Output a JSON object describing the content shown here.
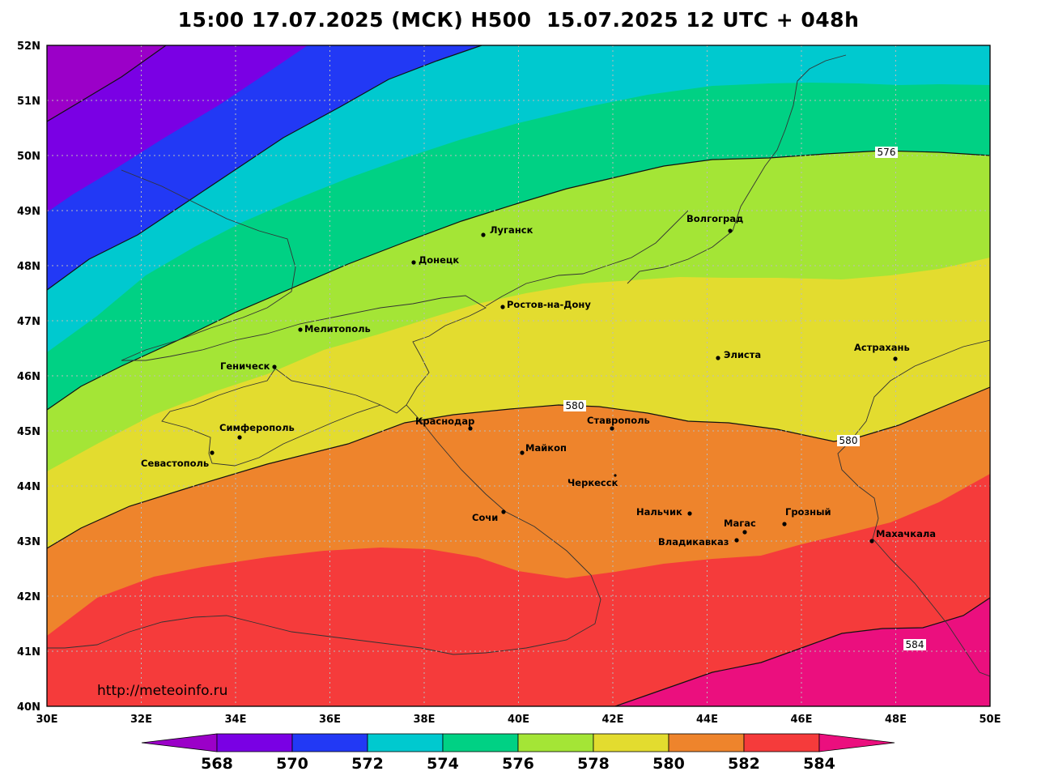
{
  "title": "15:00 17.07.2025 (МСК) H500  15.07.2025 12 UTC + 048h",
  "url": "http://meteoinfo.ru",
  "x_ticks": [
    "30E",
    "32E",
    "34E",
    "36E",
    "38E",
    "40E",
    "42E",
    "44E",
    "46E",
    "48E",
    "50E"
  ],
  "y_ticks": [
    "52N",
    "51N",
    "50N",
    "49N",
    "48N",
    "47N",
    "46N",
    "45N",
    "44N",
    "43N",
    "42N",
    "41N",
    "40N"
  ],
  "colorbar": {
    "labels": [
      "568",
      "570",
      "572",
      "574",
      "576",
      "578",
      "580",
      "582",
      "584"
    ],
    "colors": [
      "#9b00c8",
      "#7a00e4",
      "#2239f5",
      "#00c9cf",
      "#00d184",
      "#a4e536",
      "#e3dc2f",
      "#ee842c",
      "#f53b3b",
      "#eb0f7e"
    ]
  },
  "contour_labels": [
    "576",
    "580",
    "580",
    "584"
  ],
  "cities": [
    {
      "name": "Волгоград"
    },
    {
      "name": "Луганск"
    },
    {
      "name": "Донецк"
    },
    {
      "name": "Ростов-на-Дону"
    },
    {
      "name": "Мелитополь"
    },
    {
      "name": "Геническ"
    },
    {
      "name": "Симферополь"
    },
    {
      "name": "Севастополь"
    },
    {
      "name": "Краснодар"
    },
    {
      "name": "Майкоп"
    },
    {
      "name": "Ставрополь"
    },
    {
      "name": "Элиста"
    },
    {
      "name": "Астрахань"
    },
    {
      "name": "Черкесск"
    },
    {
      "name": "Нальчик"
    },
    {
      "name": "Магас"
    },
    {
      "name": "Грозный"
    },
    {
      "name": "Владикавказ"
    },
    {
      "name": "Махачкала"
    },
    {
      "name": "Сочи"
    }
  ]
}
